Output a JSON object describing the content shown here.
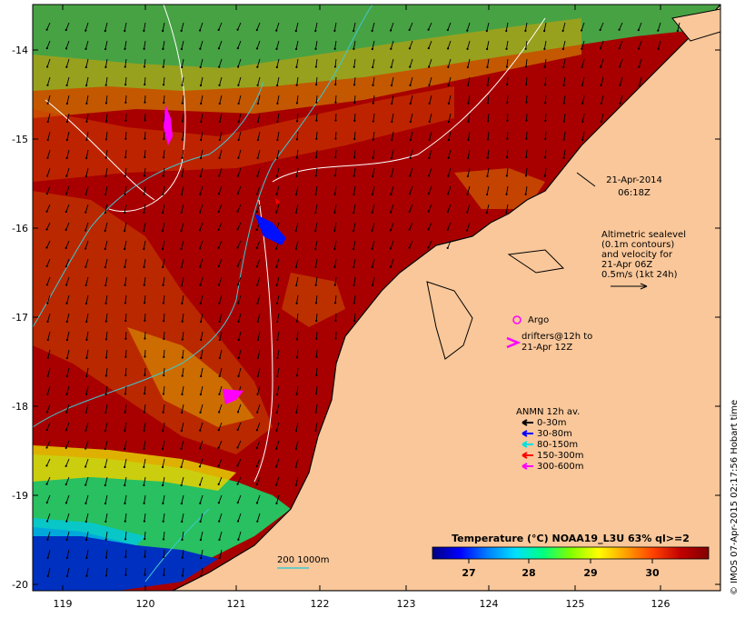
{
  "map": {
    "lon_ticks": [
      "119",
      "120",
      "121",
      "122",
      "123",
      "124",
      "125",
      "126"
    ],
    "lat_ticks": [
      "-14",
      "-15",
      "-16",
      "-17",
      "-18",
      "-19",
      "-20"
    ],
    "colors": {
      "land": "#f9c79a",
      "coast": "#000000",
      "sst_hot": "#a00000",
      "sst_warm": "#d04000",
      "contour": "#ffffff",
      "bathymetry": "#40c8d0",
      "argo": "#ff00ff"
    }
  },
  "annotations": {
    "date": "21-Apr-2014",
    "time": "06:18Z",
    "sealevel_line1": "Altimetric sealevel",
    "sealevel_line2": "(0.1m contours)",
    "sealevel_line3": "and velocity for",
    "sealevel_line4": "21-Apr 06Z",
    "sealevel_line5": "0.5m/s (1kt 24h)",
    "argo": "Argo",
    "drifters_line1": "drifters@12h to",
    "drifters_line2": "21-Apr 12Z",
    "bathymetry": "200  1000m",
    "credit": "© IMOS 07-Apr-2015 02:17:56 Hobart time"
  },
  "anmn_legend": {
    "title": "ANMN 12h av.",
    "items": [
      {
        "label": "0-30m",
        "color": "#000000"
      },
      {
        "label": "30-80m",
        "color": "#0000ff"
      },
      {
        "label": "80-150m",
        "color": "#00e0e0"
      },
      {
        "label": "150-300m",
        "color": "#ff0000"
      },
      {
        "label": "300-600m",
        "color": "#ff00ff"
      }
    ]
  },
  "colorbar": {
    "title": "Temperature (°C) NOAA19_L3U 63% ql>=2",
    "ticks": [
      "27",
      "28",
      "29",
      "30"
    ],
    "gradient": [
      "#000080",
      "#0000ff",
      "#0080ff",
      "#00e0ff",
      "#00ff80",
      "#80ff00",
      "#ffff00",
      "#ffa000",
      "#ff4000",
      "#c00000",
      "#800000"
    ]
  }
}
